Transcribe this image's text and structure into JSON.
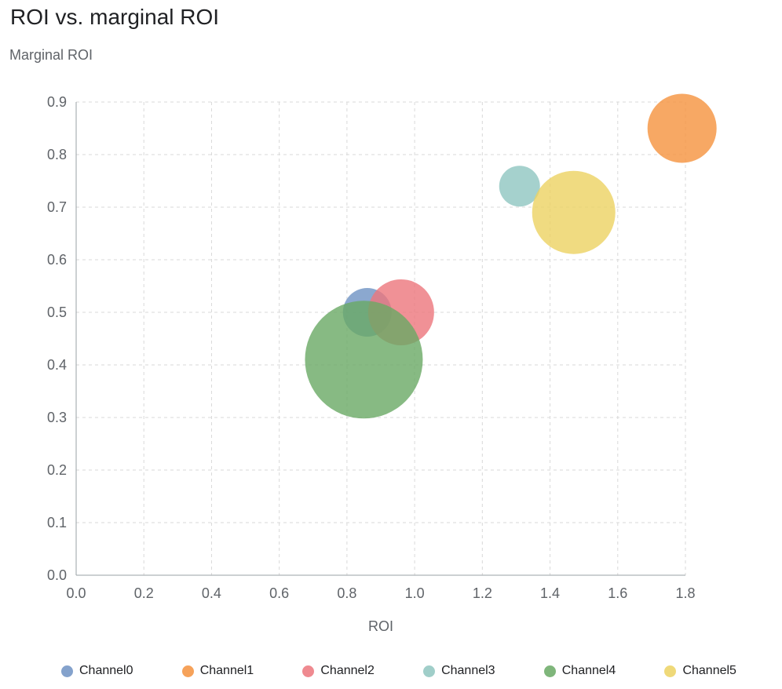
{
  "chart_data": {
    "type": "scatter",
    "title": "ROI vs. marginal ROI",
    "xlabel": "ROI",
    "ylabel": "Marginal ROI",
    "xlim": [
      0.0,
      1.8
    ],
    "ylim": [
      0.0,
      0.9
    ],
    "xticks": [
      0.0,
      0.2,
      0.4,
      0.6,
      0.8,
      1.0,
      1.2,
      1.4,
      1.6,
      1.8
    ],
    "yticks": [
      0.0,
      0.1,
      0.2,
      0.3,
      0.4,
      0.5,
      0.6,
      0.7,
      0.8,
      0.9
    ],
    "grid": true,
    "legend_position": "bottom",
    "bubble_opacity": 0.8,
    "series": [
      {
        "name": "Channel0",
        "color": "#6e92c3",
        "x": 0.86,
        "y": 0.5,
        "r": 31
      },
      {
        "name": "Channel1",
        "color": "#f5923d",
        "x": 1.79,
        "y": 0.85,
        "r": 44
      },
      {
        "name": "Channel2",
        "color": "#ec757c",
        "x": 0.96,
        "y": 0.5,
        "r": 42
      },
      {
        "name": "Channel3",
        "color": "#8fc6c0",
        "x": 1.31,
        "y": 0.74,
        "r": 26
      },
      {
        "name": "Channel4",
        "color": "#69a964",
        "x": 0.85,
        "y": 0.41,
        "r": 75
      },
      {
        "name": "Channel5",
        "color": "#ecd262",
        "x": 1.47,
        "y": 0.69,
        "r": 53
      }
    ]
  }
}
